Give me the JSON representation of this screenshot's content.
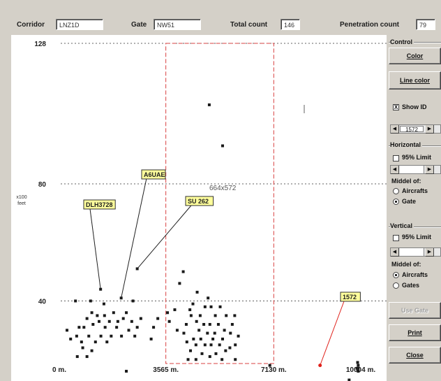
{
  "header": {
    "corridor_label": "Corridor",
    "corridor_value": "LNZ1D",
    "gate_label": "Gate",
    "gate_value": "NW51",
    "total_label": "Total count",
    "total_value": "146",
    "penetration_label": "Penetration count",
    "penetration_value": "79"
  },
  "plot": {
    "y_ticks": [
      "128",
      "80",
      "40"
    ],
    "y_unit": "x100\nfeet",
    "x_ticks": [
      "0 m.",
      "3565 m.",
      "7130 m.",
      "10004 m."
    ],
    "size_readout": "664x572",
    "labels": [
      "DLH3728",
      "A6UAE",
      "SU 262",
      "1572"
    ],
    "colors": {
      "point": "#1a1a1a",
      "highlight": "#e0201a",
      "gate_box": "#d84040",
      "tag_bg": "#ffff9c"
    }
  },
  "chart_data": {
    "type": "scatter",
    "y_ticks": [
      128,
      80,
      40
    ],
    "x_ticks": [
      0,
      3565,
      7130,
      10004
    ],
    "xlim": [
      0,
      10004
    ],
    "ylim": [
      0,
      128
    ],
    "gate_x_range": [
      3565,
      7130
    ],
    "labeled_points": [
      {
        "name": "DLH3728",
        "x": 1410,
        "y": 44
      },
      {
        "name": "A6UAE",
        "x": 2090,
        "y": 41
      },
      {
        "name": "SU 262",
        "x": 2620,
        "y": 51
      },
      {
        "name": "1572",
        "x": 8660,
        "y": 18
      }
    ],
    "points": [
      [
        5000,
        107
      ],
      [
        5440,
        93
      ],
      [
        4140,
        50
      ],
      [
        4020,
        46
      ],
      [
        4600,
        43
      ],
      [
        4960,
        41
      ],
      [
        580,
        40
      ],
      [
        1080,
        40
      ],
      [
        1520,
        39
      ],
      [
        2480,
        40
      ],
      [
        4460,
        39
      ],
      [
        4360,
        37
      ],
      [
        4860,
        38
      ],
      [
        5060,
        38
      ],
      [
        5360,
        38
      ],
      [
        3860,
        37
      ],
      [
        3620,
        36
      ],
      [
        2260,
        36
      ],
      [
        1840,
        36
      ],
      [
        1540,
        35
      ],
      [
        1300,
        35
      ],
      [
        1120,
        36
      ],
      [
        1980,
        33
      ],
      [
        2160,
        34
      ],
      [
        2740,
        34
      ],
      [
        3300,
        34
      ],
      [
        3680,
        33
      ],
      [
        4400,
        35
      ],
      [
        4700,
        35
      ],
      [
        5200,
        35
      ],
      [
        5560,
        35
      ],
      [
        5840,
        35
      ],
      [
        960,
        34
      ],
      [
        1360,
        33
      ],
      [
        1700,
        33
      ],
      [
        2440,
        33
      ],
      [
        3940,
        30
      ],
      [
        4240,
        32
      ],
      [
        4580,
        33
      ],
      [
        4820,
        32
      ],
      [
        5020,
        32
      ],
      [
        5300,
        32
      ],
      [
        5760,
        32
      ],
      [
        300,
        30
      ],
      [
        700,
        31
      ],
      [
        860,
        31
      ],
      [
        1160,
        32
      ],
      [
        1560,
        31
      ],
      [
        1940,
        31
      ],
      [
        2340,
        30
      ],
      [
        2620,
        31
      ],
      [
        3160,
        31
      ],
      [
        4160,
        29
      ],
      [
        4660,
        30
      ],
      [
        4940,
        29
      ],
      [
        5180,
        29
      ],
      [
        5500,
        30
      ],
      [
        5700,
        29
      ],
      [
        620,
        28
      ],
      [
        1020,
        28
      ],
      [
        1420,
        28
      ],
      [
        1760,
        28
      ],
      [
        2100,
        28
      ],
      [
        2540,
        28
      ],
      [
        3080,
        27
      ],
      [
        4480,
        27
      ],
      [
        4720,
        27
      ],
      [
        5120,
        27
      ],
      [
        5440,
        27
      ],
      [
        5960,
        28
      ],
      [
        420,
        27
      ],
      [
        780,
        26
      ],
      [
        1240,
        26
      ],
      [
        1620,
        26
      ],
      [
        4260,
        26
      ],
      [
        4560,
        25
      ],
      [
        4860,
        25
      ],
      [
        5060,
        25
      ],
      [
        5340,
        25
      ],
      [
        5680,
        24
      ],
      [
        5860,
        25
      ],
      [
        820,
        24
      ],
      [
        1120,
        23
      ],
      [
        4380,
        23
      ],
      [
        4760,
        22
      ],
      [
        5220,
        22
      ],
      [
        5540,
        23
      ],
      [
        640,
        21
      ],
      [
        960,
        21
      ],
      [
        4300,
        20
      ],
      [
        4560,
        20
      ],
      [
        5020,
        21
      ],
      [
        5420,
        20
      ],
      [
        5860,
        20
      ],
      [
        7000,
        18
      ],
      [
        9920,
        18
      ],
      [
        9920,
        17
      ],
      [
        9920,
        16
      ],
      [
        9900,
        19
      ],
      [
        9880,
        17
      ],
      [
        2260,
        16
      ],
      [
        9620,
        13
      ],
      [
        7180,
        12
      ],
      [
        1100,
        9
      ],
      [
        960,
        8
      ],
      [
        7060,
        8
      ]
    ]
  },
  "panel": {
    "group_control": "Control",
    "color_btn": "Color",
    "line_color_btn": "Line color",
    "show_id_label": "Show ID",
    "show_id_mark": "X",
    "id_value": "1572",
    "group_horizontal": "Horizontal",
    "limit95_h": "95% Limit",
    "middle_of_h": "Middel of:",
    "aircrafts_h": "Aircrafts",
    "gate_h": "Gate",
    "group_vertical": "Vertical",
    "limit95_v": "95% Limit",
    "middle_of_v": "Middel of:",
    "aircrafts_v": "Aircrafts",
    "gates_v": "Gates",
    "use_gate_btn": "Use Gate",
    "print_btn": "Print",
    "close_btn": "Close"
  }
}
